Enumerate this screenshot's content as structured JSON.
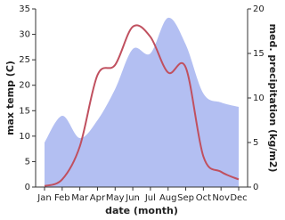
{
  "chart_data": {
    "type": "line-area",
    "categories": [
      "Jan",
      "Feb",
      "Mar",
      "Apr",
      "May",
      "Jun",
      "Jul",
      "Aug",
      "Sep",
      "Oct",
      "Nov",
      "Dec"
    ],
    "xlabel": "date (month)",
    "ylabel": "max temp (C)",
    "y2label": "med. precipitation (kg/m2)",
    "ylim": [
      0,
      35
    ],
    "yticks": [
      0,
      5,
      10,
      15,
      20,
      25,
      30,
      35
    ],
    "y2lim": [
      0,
      20
    ],
    "y2ticks": [
      0,
      5,
      10,
      15,
      20
    ],
    "series": [
      {
        "name": "med. precipitation",
        "axis": "y2",
        "color": "#b3bff2",
        "values": [
          5,
          8,
          5.5,
          7.5,
          11,
          15.5,
          15,
          19,
          16,
          10.5,
          9.5,
          9
        ]
      },
      {
        "name": "max temp",
        "axis": "y",
        "color": "#c0505f",
        "values": [
          0.2,
          1.5,
          8,
          22,
          24,
          31.5,
          29.5,
          22.5,
          23.5,
          6,
          3,
          1.5
        ]
      }
    ]
  }
}
